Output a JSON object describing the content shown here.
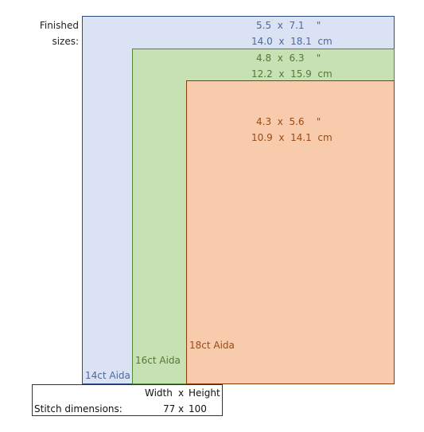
{
  "finished_sizes_label": [
    "Finished",
    "sizes:"
  ],
  "sizes": [
    {
      "fabric": "14ct Aida",
      "inches": "5.5  x  7.1    \"",
      "cm": "14.0  x  18.1  cm",
      "color": "#4a6aa0"
    },
    {
      "fabric": "16ct Aida",
      "inches": "4.8  x  6.3    \"",
      "cm": "12.2  x  15.9  cm",
      "color": "#537a35"
    },
    {
      "fabric": "18ct Aida",
      "inches": "4.3  x  5.6    \"",
      "cm": "10.9  x  14.1  cm",
      "color": "#9a4a16"
    }
  ],
  "stitch_dimensions": {
    "header_width": "Width",
    "header_x": "x",
    "header_height": "Height",
    "label": "Stitch dimensions:",
    "width": "77",
    "x": "x",
    "height": "100"
  }
}
